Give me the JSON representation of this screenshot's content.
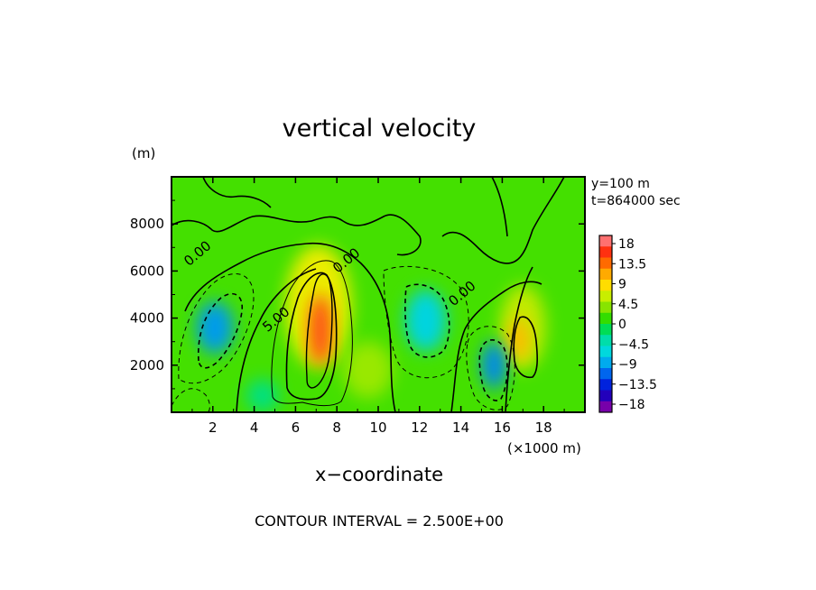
{
  "chart_data": {
    "type": "heatmap",
    "title": "vertical velocity",
    "xlabel": "x−coordinate",
    "ylabel": "",
    "y_unit": "(m)",
    "x_unit": "(×1000 m)",
    "xlim": [
      0,
      20
    ],
    "ylim": [
      0,
      10000
    ],
    "x_ticks": [
      2,
      4,
      6,
      8,
      10,
      12,
      14,
      16,
      18
    ],
    "x_tick_labels": [
      "2",
      "4",
      "6",
      "8",
      "10",
      "12",
      "14",
      "16",
      "18"
    ],
    "y_ticks": [
      2000,
      4000,
      6000,
      8000
    ],
    "y_tick_labels": [
      "2000",
      "4000",
      "6000",
      "8000"
    ],
    "info_lines": [
      "y=100  m",
      "t=864000  sec"
    ],
    "footer": "CONTOUR INTERVAL = 2.500E+00",
    "contour_labels": [
      {
        "text": "5.00",
        "x": 5.2,
        "y": 3800
      },
      {
        "text": "0.00",
        "x": 8.6,
        "y": 6300
      },
      {
        "text": "0.00",
        "x": 1.4,
        "y": 6600
      },
      {
        "text": "0.00",
        "x": 14.2,
        "y": 4900
      }
    ],
    "colorbar": {
      "labels": [
        "18",
        "13.5",
        "9",
        "4.5",
        "0",
        "−4.5",
        "−9",
        "−13.5",
        "−18"
      ],
      "colors": [
        "#ff7070",
        "#ff3010",
        "#ff6a00",
        "#ffaa00",
        "#ffdd00",
        "#c8ee00",
        "#88e400",
        "#33dd00",
        "#00dd55",
        "#00ddaa",
        "#00d8dd",
        "#00aaee",
        "#0066ee",
        "#0022dd",
        "#2200bb",
        "#7700aa"
      ]
    },
    "cells": [
      {
        "x": 7.2,
        "y": 3500,
        "value": 15,
        "sx": 0.55,
        "sy": 1500
      },
      {
        "x": 7.1,
        "y": 4500,
        "value": 4,
        "sx": 1.6,
        "sy": 2600
      },
      {
        "x": 16.8,
        "y": 3100,
        "value": 8,
        "sx": 0.5,
        "sy": 900
      },
      {
        "x": 17.0,
        "y": 3600,
        "value": 3,
        "sx": 1.1,
        "sy": 1800
      },
      {
        "x": 2.1,
        "y": 3600,
        "value": -8,
        "sx": 0.9,
        "sy": 1100
      },
      {
        "x": 12.3,
        "y": 3900,
        "value": -5,
        "sx": 1.0,
        "sy": 1300
      },
      {
        "x": 15.6,
        "y": 2000,
        "value": -9,
        "sx": 0.6,
        "sy": 1000
      },
      {
        "x": 9.5,
        "y": 1800,
        "value": 2,
        "sx": 1.2,
        "sy": 1200
      },
      {
        "x": 4.4,
        "y": 700,
        "value": -2,
        "sx": 0.8,
        "sy": 700
      }
    ]
  }
}
